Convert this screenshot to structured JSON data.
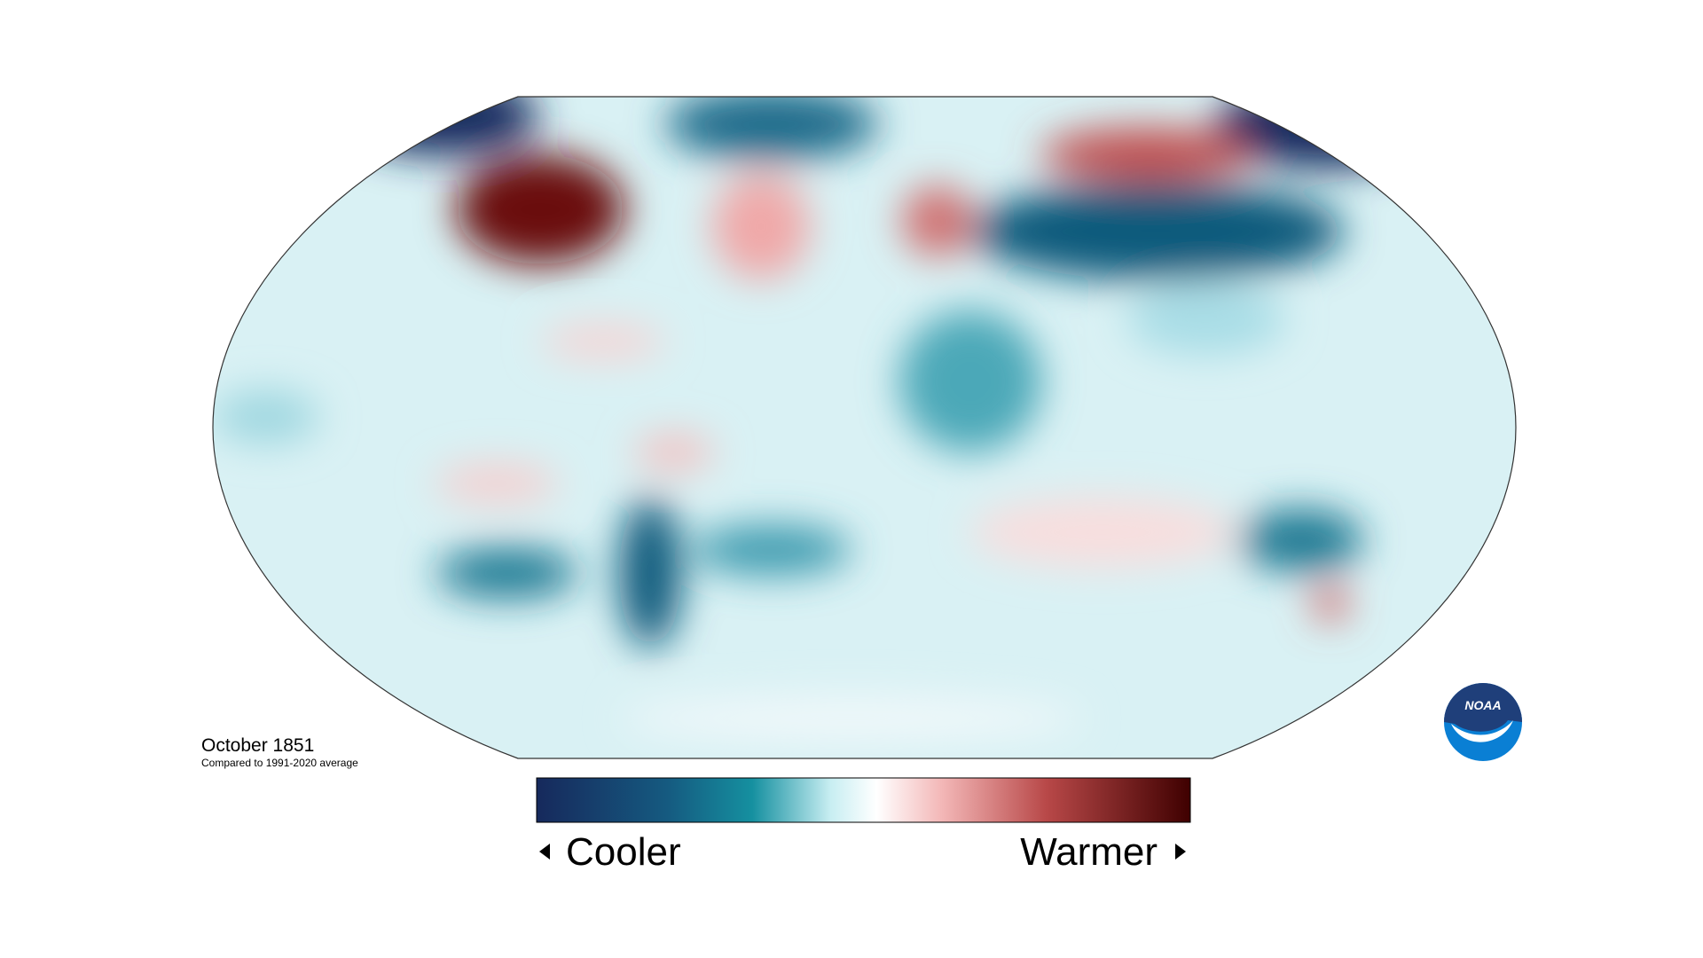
{
  "map": {
    "title": "October 1851",
    "subtitle": "Compared to 1991-2020 average"
  },
  "legend": {
    "low_label": "Cooler",
    "high_label": "Warmer"
  },
  "logo": {
    "text": "NOAA"
  }
}
